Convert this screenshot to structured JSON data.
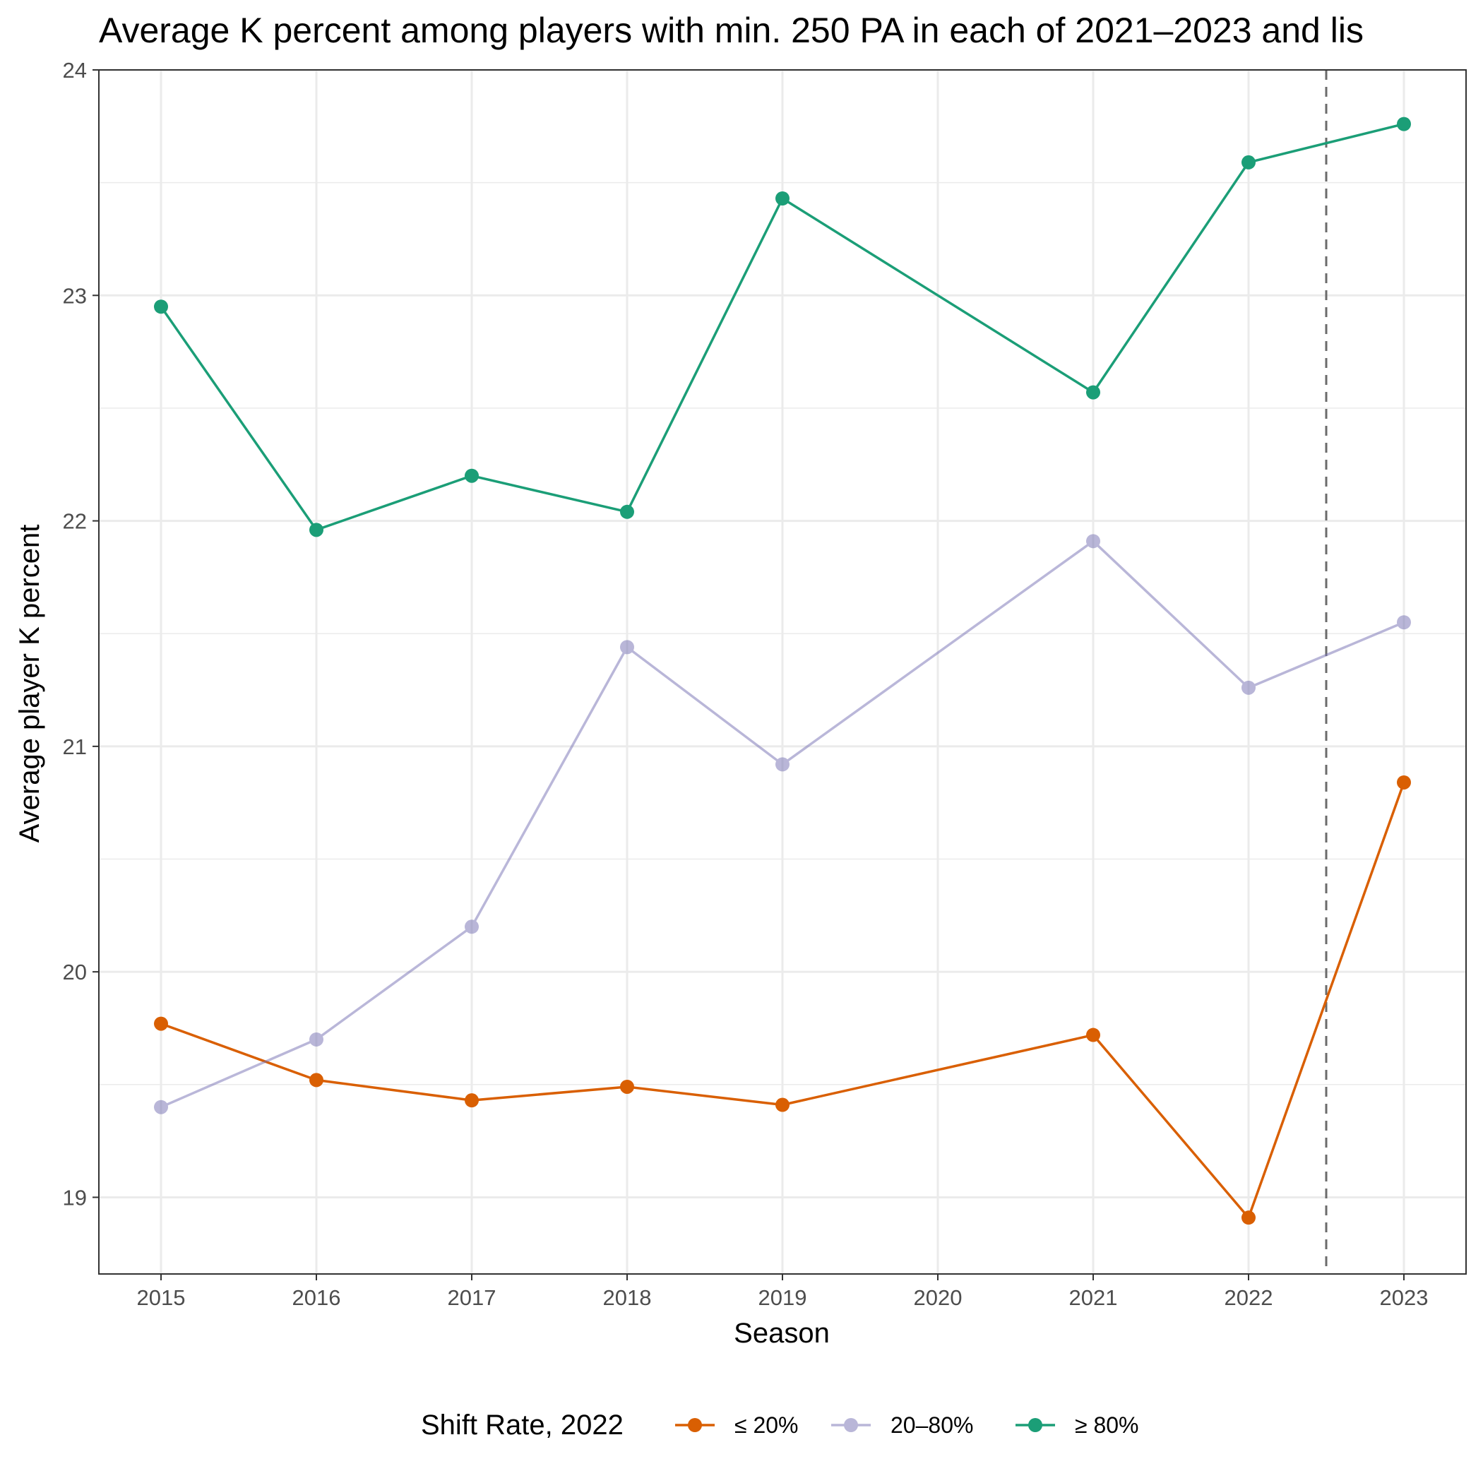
{
  "chart_data": {
    "type": "line",
    "title": "Average K percent among players with min. 250 PA in each of 2021–2023 and lis",
    "xlabel": "Season",
    "ylabel": "Average player K percent",
    "x": [
      2015,
      2016,
      2017,
      2018,
      2019,
      2021,
      2022,
      2023
    ],
    "x_ticks": [
      "2015",
      "2016",
      "2017",
      "2018",
      "2019",
      "2020",
      "2021",
      "2022",
      "2023"
    ],
    "y_ticks": [
      "19",
      "20",
      "21",
      "22",
      "23",
      "24"
    ],
    "xlim": [
      2014.6,
      2023.4
    ],
    "ylim": [
      18.66,
      24.0
    ],
    "grid": true,
    "reference_line": {
      "x": 2022.5,
      "style": "dashed"
    },
    "legend": {
      "title": "Shift Rate, 2022",
      "position": "bottom"
    },
    "series": [
      {
        "name": "≤ 20%",
        "color": "#d95f02",
        "opacity": 1,
        "values": [
          19.77,
          19.52,
          19.43,
          19.49,
          19.41,
          19.72,
          18.91,
          20.84
        ]
      },
      {
        "name": "20–80%",
        "color": "#7570b3",
        "opacity": 0.5,
        "values": [
          19.4,
          19.7,
          20.2,
          21.44,
          20.92,
          21.91,
          21.26,
          21.55
        ]
      },
      {
        "name": "≥ 80%",
        "color": "#1b9e77",
        "opacity": 1,
        "values": [
          22.95,
          21.96,
          22.2,
          22.04,
          23.43,
          22.57,
          23.59,
          23.76
        ]
      }
    ]
  }
}
